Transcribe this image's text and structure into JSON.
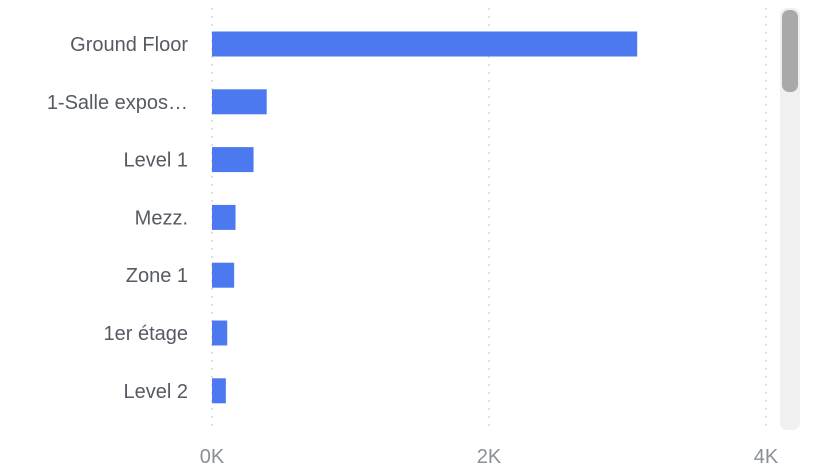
{
  "chart_data": {
    "type": "bar",
    "orientation": "horizontal",
    "categories": [
      "Ground Floor",
      "1-Salle expos…",
      "Level 1",
      "Mezz.",
      "Zone 1",
      "1er étage",
      "Level 2"
    ],
    "values": [
      3070,
      395,
      300,
      170,
      160,
      110,
      100
    ],
    "xlim": [
      0,
      4000
    ],
    "xticks": [
      0,
      2000,
      4000
    ],
    "xtick_labels": [
      "0K",
      "2K",
      "4K"
    ],
    "grid": "vertical-dotted",
    "bar_color": "#4c79f0"
  }
}
